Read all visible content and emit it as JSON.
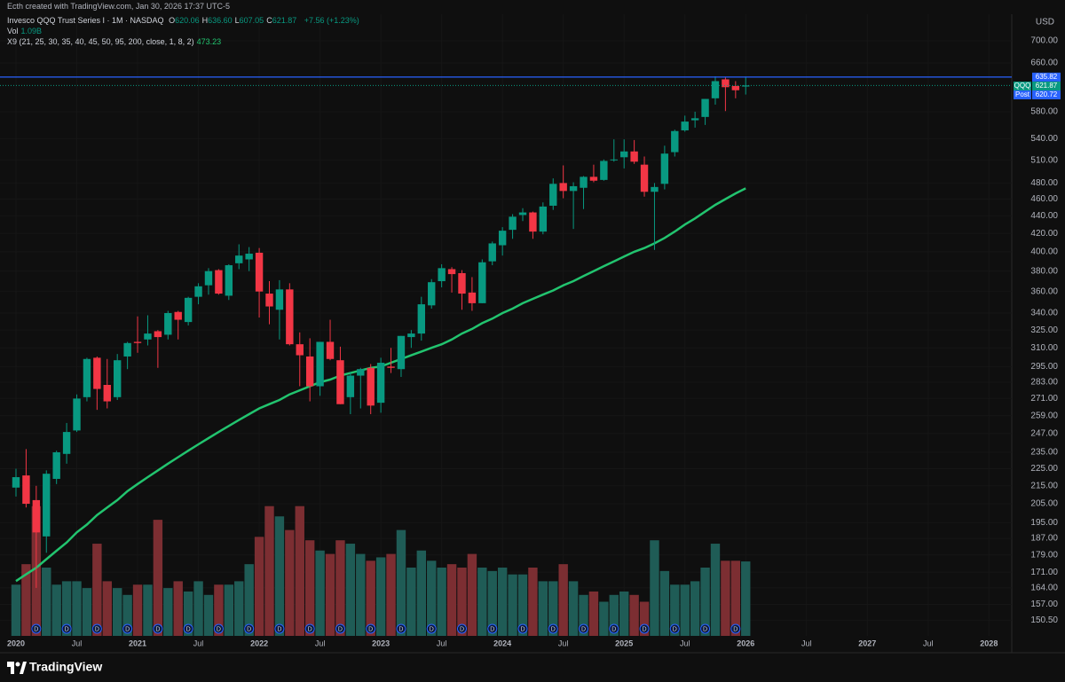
{
  "header": {
    "attribution": "Ecth created with TradingView.com, Jan 30, 2026 17:37 UTC-5",
    "currency": "USD",
    "logo": "TradingView"
  },
  "chart_data": {
    "type": "candlestick",
    "title": "Invesco QQQ Trust Series I · 1M · NASDAQ",
    "ohlc_legend": [
      {
        "label": "O",
        "value": "620.06"
      },
      {
        "label": "H",
        "value": "636.60"
      },
      {
        "label": "L",
        "value": "607.05"
      },
      {
        "label": "C",
        "value": "621.87"
      }
    ],
    "change": "+7.56 (+1.23%)",
    "x": [
      "2020-01",
      "2020-02",
      "2020-03",
      "2020-04",
      "2020-05",
      "2020-06",
      "2020-07",
      "2020-08",
      "2020-09",
      "2020-10",
      "2020-11",
      "2020-12",
      "2021-01",
      "2021-02",
      "2021-03",
      "2021-04",
      "2021-05",
      "2021-06",
      "2021-07",
      "2021-08",
      "2021-09",
      "2021-10",
      "2021-11",
      "2021-12",
      "2022-01",
      "2022-02",
      "2022-03",
      "2022-04",
      "2022-05",
      "2022-06",
      "2022-07",
      "2022-08",
      "2022-09",
      "2022-10",
      "2022-11",
      "2022-12",
      "2023-01",
      "2023-02",
      "2023-03",
      "2023-04",
      "2023-05",
      "2023-06",
      "2023-07",
      "2023-08",
      "2023-09",
      "2023-10",
      "2023-11",
      "2023-12",
      "2024-01",
      "2024-02",
      "2024-03",
      "2024-04",
      "2024-05",
      "2024-06",
      "2024-07",
      "2024-08",
      "2024-09",
      "2024-10",
      "2024-11",
      "2024-12",
      "2025-01",
      "2025-02",
      "2025-03",
      "2025-04",
      "2025-05",
      "2025-06",
      "2025-07",
      "2025-08",
      "2025-09",
      "2025-10",
      "2025-11",
      "2025-12",
      "2026-01"
    ],
    "open": [
      214,
      221,
      207,
      188,
      219,
      234,
      249,
      272,
      302,
      281,
      272,
      303,
      315,
      317,
      324,
      321,
      341,
      332,
      355,
      366,
      381,
      356,
      388,
      392,
      399,
      358,
      343,
      362,
      313,
      303,
      280,
      315,
      300,
      272,
      288,
      294,
      268,
      295,
      293,
      319,
      322,
      347,
      370,
      382,
      378,
      359,
      349,
      390,
      407,
      424,
      441,
      444,
      422,
      452,
      480,
      470,
      474,
      488,
      484,
      510,
      514,
      522,
      504,
      469,
      479,
      521,
      552,
      567,
      572,
      601,
      632,
      621,
      620.06
    ],
    "high": [
      225,
      237,
      215,
      224,
      236,
      254,
      274,
      302,
      303,
      301,
      305,
      315,
      337,
      338,
      325,
      342,
      342,
      355,
      368,
      383,
      382,
      387,
      408,
      405,
      404,
      370,
      371,
      368,
      323,
      318,
      315,
      334,
      311,
      291,
      294,
      297,
      302,
      310,
      320,
      325,
      355,
      372,
      387,
      384,
      381,
      374,
      392,
      411,
      427,
      442,
      449,
      445,
      456,
      486,
      503,
      481,
      489,
      504,
      511,
      539,
      539,
      538,
      515,
      480,
      530,
      553,
      574,
      580,
      600,
      637,
      636,
      629,
      636.6
    ],
    "low": [
      209,
      203,
      164,
      180,
      216,
      228,
      248,
      269,
      263,
      264,
      270,
      293,
      306,
      312,
      294,
      317,
      317,
      329,
      348,
      357,
      357,
      352,
      382,
      380,
      336,
      330,
      317,
      312,
      280,
      269,
      273,
      300,
      267,
      260,
      264,
      260,
      261,
      290,
      287,
      310,
      316,
      344,
      364,
      359,
      343,
      342,
      349,
      386,
      396,
      414,
      434,
      414,
      419,
      447,
      461,
      425,
      448,
      481,
      483,
      508,
      499,
      505,
      463,
      402,
      472,
      515,
      550,
      556,
      560,
      591,
      581,
      601,
      607.05
    ],
    "close": [
      220,
      205,
      190,
      222,
      235,
      248,
      271,
      301,
      278,
      269,
      300,
      314,
      314,
      322,
      319,
      340,
      334,
      354,
      365,
      380,
      358,
      386,
      396,
      398,
      360,
      346,
      362,
      313,
      304,
      280,
      315,
      301,
      267,
      288,
      293,
      266,
      298,
      294,
      320,
      322,
      348,
      369,
      383,
      377,
      358,
      349,
      389,
      409,
      423,
      439,
      444,
      422,
      451,
      479,
      470,
      476,
      488,
      483,
      509,
      511,
      522,
      508,
      469,
      475,
      519,
      551,
      565,
      570,
      600,
      629,
      619,
      614,
      621.87
    ],
    "up_color": "#089981",
    "down_color": "#f23645",
    "volume": {
      "name": "Vol",
      "label": "1.09B",
      "up_color": "#1f5c56",
      "down_color": "#7c2e32",
      "values": [
        0.75,
        1.05,
        1.9,
        1.0,
        0.75,
        0.8,
        0.8,
        0.7,
        1.35,
        0.8,
        0.7,
        0.6,
        0.75,
        0.75,
        1.7,
        0.7,
        0.8,
        0.65,
        0.8,
        0.6,
        0.75,
        0.75,
        0.8,
        1.05,
        1.45,
        1.9,
        1.75,
        1.55,
        1.9,
        1.4,
        1.25,
        1.2,
        1.4,
        1.35,
        1.2,
        1.1,
        1.15,
        1.2,
        1.55,
        1.0,
        1.25,
        1.1,
        1.0,
        1.05,
        1.0,
        1.2,
        1.0,
        0.95,
        1.0,
        0.9,
        0.9,
        1.0,
        0.8,
        0.8,
        1.05,
        0.8,
        0.6,
        0.65,
        0.5,
        0.6,
        0.65,
        0.6,
        0.5,
        1.4,
        0.95,
        0.75,
        0.75,
        0.8,
        1.0,
        1.35,
        1.1,
        1.1,
        1.09
      ]
    },
    "indicator": {
      "name": "X9 (21, 25, 30, 35, 40, 45, 50, 95, 200, close, 1, 8, 2)",
      "label": "473.23",
      "color": "#22c46f",
      "values": [
        167,
        170,
        173,
        177,
        181,
        185,
        190,
        194,
        199,
        203,
        207,
        212,
        216,
        220,
        224,
        228,
        232,
        236,
        240,
        244,
        248,
        252,
        256,
        260,
        264,
        267,
        270,
        274,
        277,
        280,
        283,
        285,
        288,
        290,
        292,
        294,
        295,
        298,
        301,
        304,
        307,
        310,
        313,
        317,
        322,
        326,
        331,
        335,
        340,
        344,
        349,
        353,
        357,
        361,
        366,
        370,
        375,
        380,
        385,
        390,
        395,
        400,
        404,
        409,
        415,
        422,
        430,
        437,
        445,
        453,
        460,
        467,
        473.23
      ]
    },
    "log_scale": true,
    "ylim": [
      144.4,
      716.7
    ],
    "yticks": [
      {
        "value": 700,
        "label": "700.00"
      },
      {
        "value": 660,
        "label": "660.00"
      },
      {
        "value": 580,
        "label": "580.00"
      },
      {
        "value": 540,
        "label": "540.00"
      },
      {
        "value": 510,
        "label": "510.00"
      },
      {
        "value": 480,
        "label": "480.00"
      },
      {
        "value": 460,
        "label": "460.00"
      },
      {
        "value": 440,
        "label": "440.00"
      },
      {
        "value": 420,
        "label": "420.00"
      },
      {
        "value": 400,
        "label": "400.00"
      },
      {
        "value": 380,
        "label": "380.00"
      },
      {
        "value": 360,
        "label": "360.00"
      },
      {
        "value": 340,
        "label": "340.00"
      },
      {
        "value": 325,
        "label": "325.00"
      },
      {
        "value": 310,
        "label": "310.00"
      },
      {
        "value": 295,
        "label": "295.00"
      },
      {
        "value": 283,
        "label": "283.00"
      },
      {
        "value": 271,
        "label": "271.00"
      },
      {
        "value": 259,
        "label": "259.00"
      },
      {
        "value": 247,
        "label": "247.00"
      },
      {
        "value": 235,
        "label": "235.00"
      },
      {
        "value": 225,
        "label": "225.00"
      },
      {
        "value": 215,
        "label": "215.00"
      },
      {
        "value": 205,
        "label": "205.00"
      },
      {
        "value": 195,
        "label": "195.00"
      },
      {
        "value": 187,
        "label": "187.00"
      },
      {
        "value": 179,
        "label": "179.00"
      },
      {
        "value": 171,
        "label": "171.00"
      },
      {
        "value": 164,
        "label": "164.00"
      },
      {
        "value": 157,
        "label": "157.00"
      },
      {
        "value": 150.5,
        "label": "150.50"
      }
    ],
    "xticks": [
      {
        "value": "2020-01",
        "label": "2020"
      },
      {
        "value": "2020-07",
        "label": "Jul"
      },
      {
        "value": "2021-01",
        "label": "2021"
      },
      {
        "value": "2021-07",
        "label": "Jul"
      },
      {
        "value": "2022-01",
        "label": "2022"
      },
      {
        "value": "2022-07",
        "label": "Jul"
      },
      {
        "value": "2023-01",
        "label": "2023"
      },
      {
        "value": "2023-07",
        "label": "Jul"
      },
      {
        "value": "2024-01",
        "label": "2024"
      },
      {
        "value": "2024-07",
        "label": "Jul"
      },
      {
        "value": "2025-01",
        "label": "2025"
      },
      {
        "value": "2025-07",
        "label": "Jul"
      },
      {
        "value": "2026-01",
        "label": "2026"
      },
      {
        "value": "2026-07",
        "label": "Jul"
      },
      {
        "value": "2027-01",
        "label": "2027"
      },
      {
        "value": "2027-07",
        "label": "Jul"
      },
      {
        "value": "2028-01",
        "label": "2028"
      }
    ],
    "price_lines": [
      {
        "value": 635.82,
        "color": "#2962ff"
      },
      {
        "name": "QQQ",
        "value": 621.87,
        "color": "#089981"
      },
      {
        "name": "Post",
        "value": 620.72,
        "color": "#2962ff"
      }
    ],
    "dividends": {
      "label": "D",
      "x": [
        "2020-03",
        "2020-06",
        "2020-09",
        "2020-12",
        "2021-03",
        "2021-06",
        "2021-09",
        "2021-12",
        "2022-03",
        "2022-06",
        "2022-09",
        "2022-12",
        "2023-03",
        "2023-06",
        "2023-09",
        "2023-12",
        "2024-03",
        "2024-06",
        "2024-09",
        "2024-12",
        "2025-03",
        "2025-06",
        "2025-09",
        "2025-12"
      ]
    }
  }
}
